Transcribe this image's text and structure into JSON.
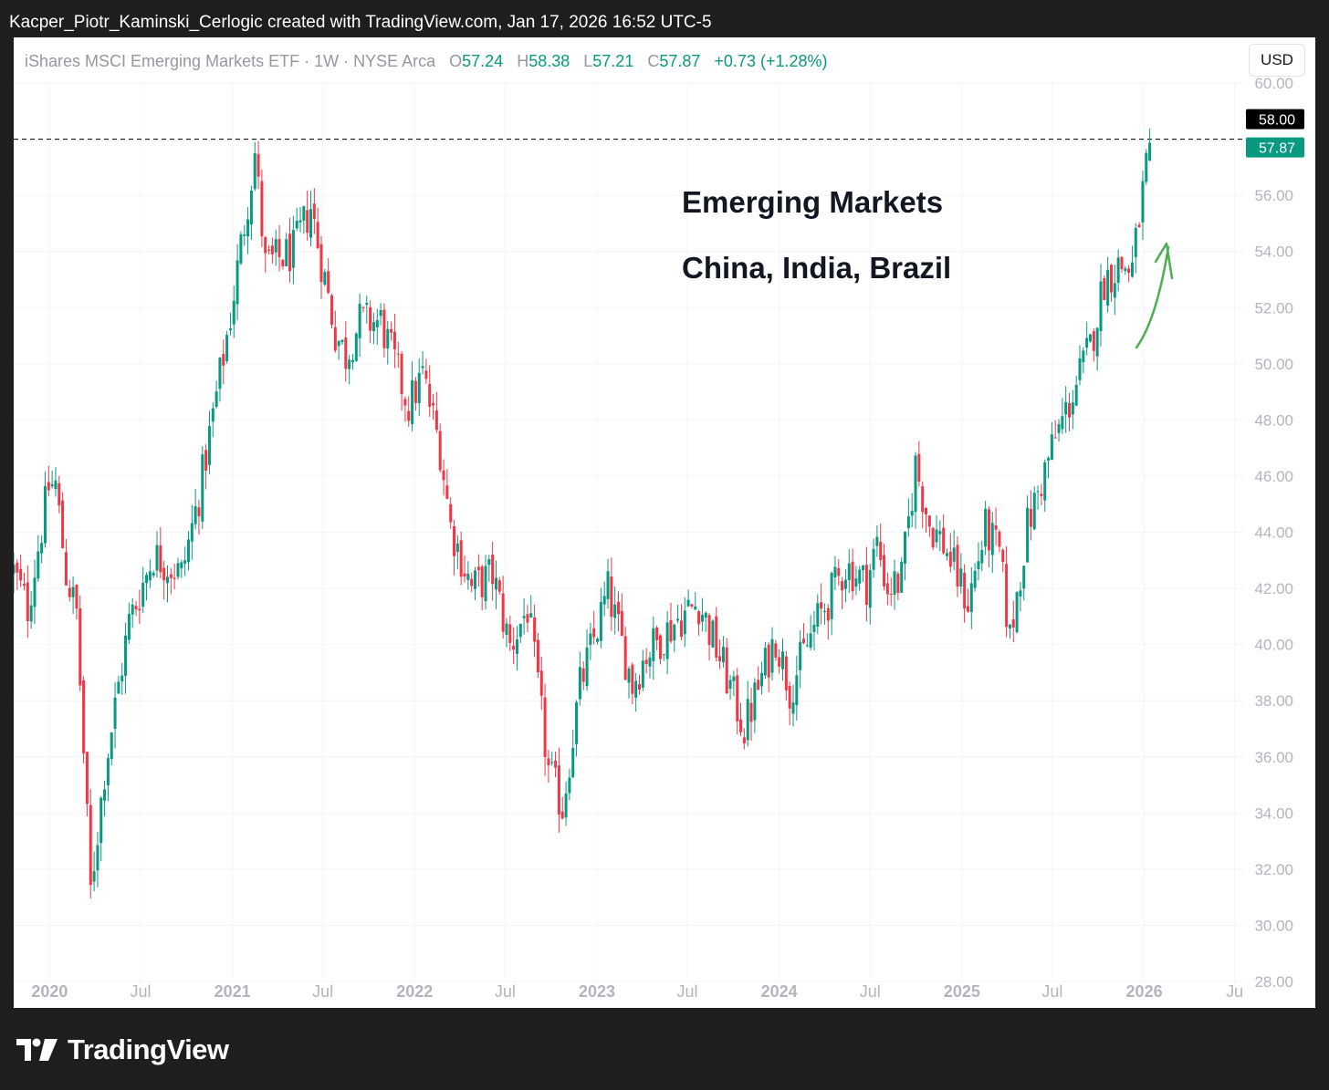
{
  "header": {
    "credit": "Kacper_Piotr_Kaminski_Cerlogic created with TradingView.com, Jan 17, 2026 16:52 UTC-5"
  },
  "legend": {
    "symbol": "iShares MSCI Emerging Markets ETF · 1W · NYSE Arca",
    "o_label": "O",
    "o": "57.24",
    "h_label": "H",
    "h": "58.38",
    "l_label": "L",
    "l": "57.21",
    "c_label": "C",
    "c": "57.87",
    "change": "+0.73 (+1.28%)"
  },
  "currency_button": "USD",
  "annotations": {
    "line1": "Emerging Markets",
    "line2": "China, India, Brazil"
  },
  "footer": {
    "brand": "TradingView"
  },
  "colors": {
    "up": "#089981",
    "down": "#f23645",
    "arrow": "#4caf50",
    "frame_bg": "#1e1e1e",
    "axis_text": "#b2b5be"
  },
  "chart_data": {
    "type": "candlestick",
    "price_scale": {
      "min": 28,
      "max": 60,
      "step": 2,
      "decimals": 2
    },
    "y_ticks": [
      "60.00",
      "56.00",
      "54.00",
      "52.00",
      "50.00",
      "48.00",
      "46.00",
      "44.00",
      "42.00",
      "40.00",
      "38.00",
      "36.00",
      "34.00",
      "32.00",
      "30.00",
      "28.00"
    ],
    "x_range": [
      "2019-10-21",
      "2026-07-20"
    ],
    "x_ticks": [
      {
        "label": "2020",
        "date": "2020-01-01",
        "major": true
      },
      {
        "label": "Jul",
        "date": "2020-07-01",
        "major": false
      },
      {
        "label": "2021",
        "date": "2021-01-01",
        "major": true
      },
      {
        "label": "Jul",
        "date": "2021-07-01",
        "major": false
      },
      {
        "label": "2022",
        "date": "2022-01-01",
        "major": true
      },
      {
        "label": "Jul",
        "date": "2022-07-01",
        "major": false
      },
      {
        "label": "2023",
        "date": "2023-01-01",
        "major": true
      },
      {
        "label": "Jul",
        "date": "2023-07-01",
        "major": false
      },
      {
        "label": "2024",
        "date": "2024-01-01",
        "major": true
      },
      {
        "label": "Jul",
        "date": "2024-07-01",
        "major": false
      },
      {
        "label": "2025",
        "date": "2025-01-01",
        "major": true
      },
      {
        "label": "Jul",
        "date": "2025-07-01",
        "major": false
      },
      {
        "label": "2026",
        "date": "2026-01-01",
        "major": true
      },
      {
        "label": "Ju",
        "date": "2026-07-01",
        "major": false
      }
    ],
    "key_points": [
      {
        "date": "2019-10-21",
        "close": 42.6
      },
      {
        "date": "2019-11-18",
        "close": 41.3
      },
      {
        "date": "2019-12-30",
        "close": 45.6
      },
      {
        "date": "2020-01-13",
        "close": 45.7
      },
      {
        "date": "2020-02-03",
        "close": 42.5
      },
      {
        "date": "2020-02-24",
        "close": 41.1
      },
      {
        "date": "2020-03-23",
        "close": 31.2
      },
      {
        "date": "2020-04-20",
        "close": 35.5
      },
      {
        "date": "2020-06-08",
        "close": 40.8
      },
      {
        "date": "2020-07-27",
        "close": 43.2
      },
      {
        "date": "2020-09-21",
        "close": 42.5
      },
      {
        "date": "2020-10-26",
        "close": 45.3
      },
      {
        "date": "2020-12-28",
        "close": 51.7
      },
      {
        "date": "2021-02-15",
        "close": 57.5
      },
      {
        "date": "2021-03-08",
        "close": 53.5
      },
      {
        "date": "2021-05-03",
        "close": 54.0
      },
      {
        "date": "2021-06-07",
        "close": 55.6
      },
      {
        "date": "2021-07-26",
        "close": 51.1
      },
      {
        "date": "2021-08-16",
        "close": 50.3
      },
      {
        "date": "2021-09-13",
        "close": 51.5
      },
      {
        "date": "2021-10-25",
        "close": 51.5
      },
      {
        "date": "2021-12-20",
        "close": 48.5
      },
      {
        "date": "2022-01-17",
        "close": 49.6
      },
      {
        "date": "2022-02-21",
        "close": 47.0
      },
      {
        "date": "2022-03-14",
        "close": 44.2
      },
      {
        "date": "2022-04-25",
        "close": 42.0
      },
      {
        "date": "2022-06-06",
        "close": 42.5
      },
      {
        "date": "2022-07-11",
        "close": 39.9
      },
      {
        "date": "2022-08-15",
        "close": 41.3
      },
      {
        "date": "2022-09-26",
        "close": 35.5
      },
      {
        "date": "2022-10-24",
        "close": 34.2
      },
      {
        "date": "2022-11-28",
        "close": 38.5
      },
      {
        "date": "2023-01-23",
        "close": 41.9
      },
      {
        "date": "2023-03-13",
        "close": 38.6
      },
      {
        "date": "2023-04-10",
        "close": 39.7
      },
      {
        "date": "2023-06-12",
        "close": 40.9
      },
      {
        "date": "2023-07-24",
        "close": 41.5
      },
      {
        "date": "2023-09-11",
        "close": 39.2
      },
      {
        "date": "2023-10-23",
        "close": 37.0
      },
      {
        "date": "2023-12-25",
        "close": 40.3
      },
      {
        "date": "2024-01-22",
        "close": 38.4
      },
      {
        "date": "2024-03-11",
        "close": 40.6
      },
      {
        "date": "2024-05-13",
        "close": 42.8
      },
      {
        "date": "2024-06-24",
        "close": 42.2
      },
      {
        "date": "2024-07-15",
        "close": 43.6
      },
      {
        "date": "2024-08-05",
        "close": 42.0
      },
      {
        "date": "2024-09-02",
        "close": 42.3
      },
      {
        "date": "2024-09-30",
        "close": 46.4
      },
      {
        "date": "2024-10-28",
        "close": 44.3
      },
      {
        "date": "2024-11-25",
        "close": 43.6
      },
      {
        "date": "2025-01-13",
        "close": 41.5
      },
      {
        "date": "2025-02-17",
        "close": 44.1
      },
      {
        "date": "2025-03-17",
        "close": 43.2
      },
      {
        "date": "2025-04-07",
        "close": 40.2
      },
      {
        "date": "2025-05-12",
        "close": 44.2
      },
      {
        "date": "2025-06-30",
        "close": 47.0
      },
      {
        "date": "2025-08-04",
        "close": 48.6
      },
      {
        "date": "2025-09-15",
        "close": 50.6
      },
      {
        "date": "2025-10-13",
        "close": 53.0
      },
      {
        "date": "2025-11-10",
        "close": 53.5
      },
      {
        "date": "2025-12-08",
        "close": 53.4
      },
      {
        "date": "2026-01-12",
        "close": 57.87
      }
    ],
    "last_bar": {
      "open": 57.24,
      "high": 58.38,
      "low": 57.21,
      "close": 57.87
    },
    "price_labels": {
      "level": "58.00",
      "last": "57.87"
    },
    "horizontal_line": 58.0
  }
}
